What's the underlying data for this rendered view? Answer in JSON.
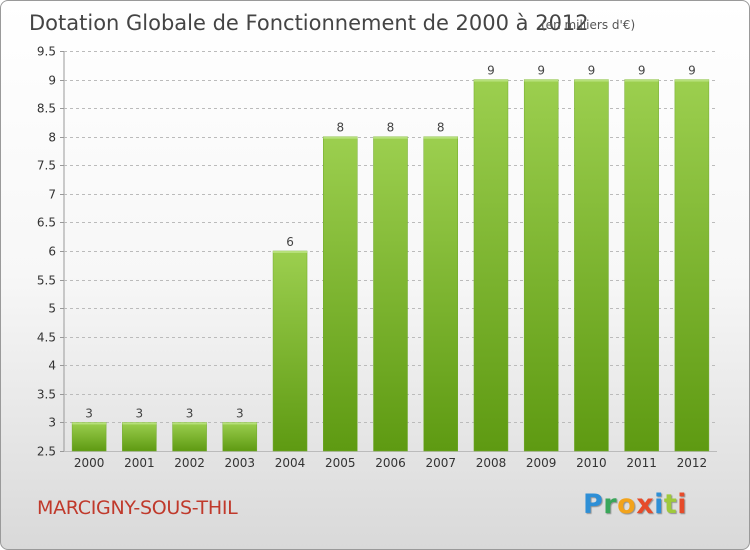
{
  "header": {
    "title": "Dotation Globale de Fonctionnement de 2000 à 2012",
    "subtitle": "(en milliers d'€)"
  },
  "footer": {
    "commune": "MARCIGNY-SOUS-THIL",
    "logo": "Proxiti"
  },
  "colors": {
    "bar": "#8cc63f",
    "bar_dark": "#5e9a12",
    "grid": "#bbbbbb",
    "axis_text": "#333333",
    "title": "#444444",
    "commune": "#c0392b"
  },
  "chart_data": {
    "type": "bar",
    "title": "Dotation Globale de Fonctionnement de 2000 à 2012",
    "subtitle": "(en milliers d'€)",
    "categories": [
      "2000",
      "2001",
      "2002",
      "2003",
      "2004",
      "2005",
      "2006",
      "2007",
      "2008",
      "2009",
      "2010",
      "2011",
      "2012"
    ],
    "values": [
      3,
      3,
      3,
      3,
      6,
      8,
      8,
      8,
      9,
      9,
      9,
      9,
      9
    ],
    "ylim": [
      2.5,
      9.5
    ],
    "yticks": [
      "2.5",
      "3",
      "3.5",
      "4",
      "4.5",
      "5",
      "5.5",
      "6",
      "6.5",
      "7",
      "7.5",
      "8",
      "8.5",
      "9",
      "9.5"
    ],
    "grid": true,
    "data_labels": true
  }
}
